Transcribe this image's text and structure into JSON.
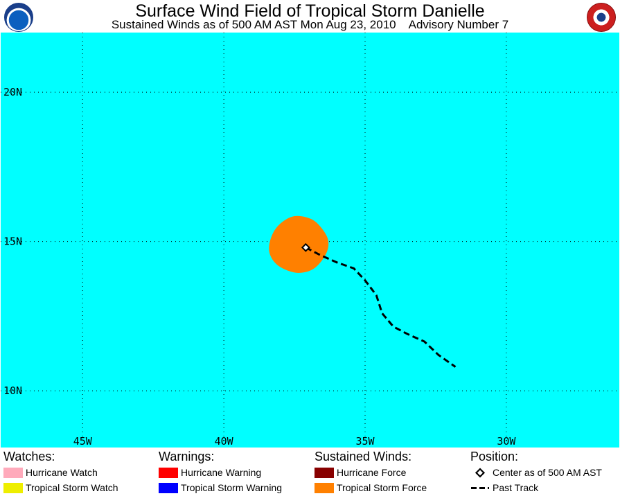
{
  "header": {
    "title": "Surface Wind Field of Tropical Storm Danielle",
    "subtitle": "Sustained Winds as of 500 AM AST Mon Aug 23, 2010",
    "advisory": "Advisory Number 7",
    "logos": [
      "noaa-logo",
      "national-weather-service-logo"
    ]
  },
  "map": {
    "ocean_color": "#00ffff",
    "lon_range_w": [
      47.9,
      26.0
    ],
    "lat_range_n": [
      8.1,
      22.0
    ],
    "grid": true,
    "lat_labels": [
      {
        "text": "20N",
        "lat": 20
      },
      {
        "text": "15N",
        "lat": 15
      },
      {
        "text": "10N",
        "lat": 10
      }
    ],
    "lon_labels": [
      {
        "text": "45W",
        "lon": 45
      },
      {
        "text": "40W",
        "lon": 40
      },
      {
        "text": "35W",
        "lon": 35
      },
      {
        "text": "30W",
        "lon": 30
      }
    ],
    "storm_center": {
      "lat": 14.8,
      "lon": 37.1
    },
    "tropical_storm_force_field": {
      "color": "#ff8000",
      "boundary_latlon": [
        [
          15.85,
          37.5
        ],
        [
          15.75,
          36.9
        ],
        [
          15.4,
          36.5
        ],
        [
          15.0,
          36.3
        ],
        [
          14.55,
          36.4
        ],
        [
          14.1,
          36.8
        ],
        [
          13.95,
          37.3
        ],
        [
          14.05,
          37.8
        ],
        [
          14.3,
          38.2
        ],
        [
          14.7,
          38.4
        ],
        [
          15.2,
          38.3
        ],
        [
          15.6,
          38.0
        ]
      ]
    },
    "past_track": {
      "color": "#000000",
      "points_latlon": [
        [
          14.8,
          37.1
        ],
        [
          14.55,
          36.6
        ],
        [
          14.3,
          36.0
        ],
        [
          14.1,
          35.4
        ],
        [
          13.7,
          35.0
        ],
        [
          13.2,
          34.6
        ],
        [
          12.6,
          34.4
        ],
        [
          12.15,
          34.0
        ],
        [
          11.9,
          33.5
        ],
        [
          11.65,
          32.9
        ],
        [
          11.2,
          32.4
        ],
        [
          10.8,
          31.8
        ]
      ]
    }
  },
  "legend": {
    "watches": {
      "heading": "Watches:",
      "items": [
        {
          "label": "Hurricane Watch",
          "color": "#ffaabb"
        },
        {
          "label": "Tropical Storm Watch",
          "color": "#eeee00"
        }
      ]
    },
    "warnings": {
      "heading": "Warnings:",
      "items": [
        {
          "label": "Hurricane Warning",
          "color": "#ff0000"
        },
        {
          "label": "Tropical Storm Warning",
          "color": "#0000ff"
        }
      ]
    },
    "sustained_winds": {
      "heading": "Sustained Winds:",
      "items": [
        {
          "label": "Hurricane Force",
          "color": "#880000"
        },
        {
          "label": "Tropical Storm Force",
          "color": "#ff8000"
        }
      ]
    },
    "position": {
      "heading": "Position:",
      "items": [
        {
          "label": "Center as of 500 AM AST",
          "symbol": "diamond-icon"
        },
        {
          "label": "Past Track",
          "symbol": "dashed-line-icon"
        }
      ]
    }
  }
}
